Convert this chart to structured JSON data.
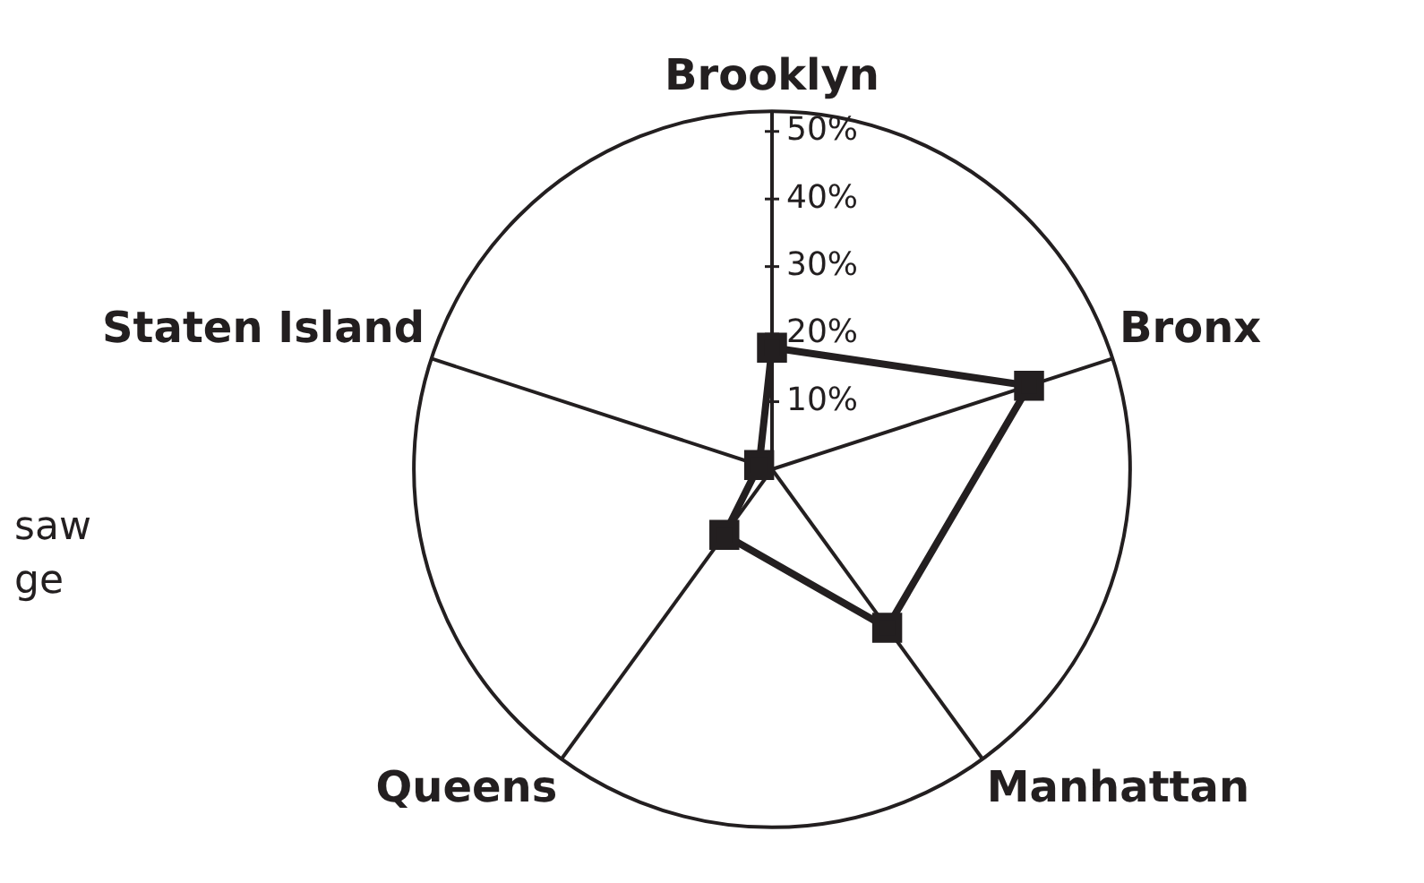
{
  "chart_data": {
    "type": "radar",
    "categories": [
      "Brooklyn",
      "Bronx",
      "Manhattan",
      "Queens",
      "Staten Island"
    ],
    "series": [
      {
        "color": "#231f20",
        "values": [
          18,
          40,
          29,
          12,
          2
        ]
      }
    ],
    "ylim": [
      0,
      53
    ],
    "yticks": [
      {
        "value": 10,
        "label": "10%"
      },
      {
        "value": 20,
        "label": "20%"
      },
      {
        "value": 30,
        "label": "30%"
      },
      {
        "value": 40,
        "label": "40%"
      },
      {
        "value": 50,
        "label": "50%"
      }
    ],
    "grid": false,
    "legend": false,
    "marker": "square",
    "line_style": "solid",
    "annotations": [
      "saw",
      "ge"
    ]
  }
}
